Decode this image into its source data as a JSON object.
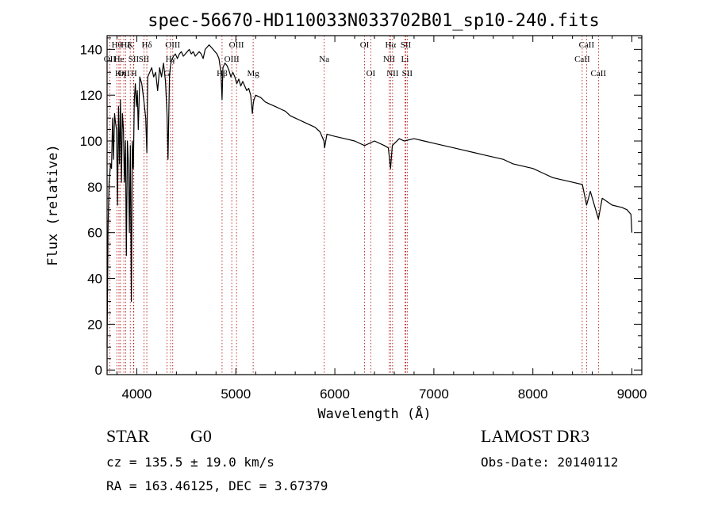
{
  "chart_data": {
    "type": "line",
    "title": "spec-56670-HD110033N033702B01_sp10-240.fits",
    "xlabel": "Wavelength (Å)",
    "ylabel": "Flux (relative)",
    "xlim": [
      3700,
      9100
    ],
    "ylim": [
      -2,
      146
    ],
    "x_ticks": [
      4000,
      5000,
      6000,
      7000,
      8000,
      9000
    ],
    "y_ticks": [
      0,
      20,
      40,
      60,
      80,
      100,
      120,
      140
    ],
    "series": [
      {
        "name": "spectrum",
        "x": [
          3700,
          3710,
          3720,
          3735,
          3745,
          3755,
          3765,
          3775,
          3785,
          3795,
          3805,
          3815,
          3825,
          3835,
          3845,
          3855,
          3865,
          3875,
          3885,
          3895,
          3905,
          3915,
          3925,
          3935,
          3945,
          3955,
          3965,
          3975,
          3985,
          3995,
          4005,
          4015,
          4030,
          4050,
          4070,
          4090,
          4101,
          4110,
          4130,
          4150,
          4170,
          4190,
          4210,
          4230,
          4250,
          4270,
          4290,
          4305,
          4315,
          4330,
          4340,
          4350,
          4370,
          4390,
          4410,
          4430,
          4450,
          4470,
          4490,
          4510,
          4530,
          4550,
          4570,
          4590,
          4610,
          4630,
          4650,
          4670,
          4690,
          4710,
          4730,
          4750,
          4770,
          4790,
          4810,
          4830,
          4850,
          4861,
          4870,
          4890,
          4910,
          4930,
          4950,
          4970,
          4990,
          5010,
          5030,
          5050,
          5070,
          5090,
          5110,
          5130,
          5150,
          5167,
          5175,
          5183,
          5200,
          5250,
          5300,
          5350,
          5400,
          5450,
          5500,
          5550,
          5600,
          5650,
          5700,
          5750,
          5800,
          5850,
          5890,
          5896,
          5920,
          6000,
          6100,
          6200,
          6300,
          6400,
          6500,
          6540,
          6563,
          6580,
          6650,
          6700,
          6800,
          6900,
          7000,
          7100,
          7200,
          7300,
          7400,
          7500,
          7600,
          7700,
          7800,
          7900,
          8000,
          8100,
          8200,
          8300,
          8400,
          8500,
          8542,
          8580,
          8662,
          8700,
          8800,
          8900,
          8950,
          8990,
          9000
        ],
        "y": [
          10,
          62,
          82,
          90,
          88,
          110,
          92,
          112,
          108,
          105,
          72,
          115,
          90,
          118,
          82,
          112,
          105,
          82,
          100,
          50,
          100,
          90,
          60,
          98,
          30,
          100,
          88,
          118,
          125,
          115,
          122,
          105,
          128,
          125,
          118,
          110,
          95,
          128,
          130,
          132,
          128,
          130,
          122,
          132,
          128,
          134,
          126,
          112,
          92,
          128,
          133,
          135,
          137,
          138,
          136,
          138,
          139,
          137,
          138,
          139,
          140,
          138,
          139,
          137,
          138,
          139,
          138,
          136,
          140,
          141,
          142,
          141,
          140,
          139,
          138,
          136,
          130,
          118,
          132,
          134,
          133,
          131,
          128,
          130,
          128,
          125,
          127,
          124,
          126,
          124,
          122,
          123,
          120,
          112,
          116,
          118,
          120,
          119,
          117,
          116,
          115,
          114,
          113,
          111,
          110,
          109,
          108,
          107,
          106,
          104,
          100,
          97,
          103,
          102,
          101,
          100,
          98,
          100,
          98,
          97,
          88,
          98,
          101,
          100,
          101,
          100,
          99,
          98,
          97,
          96,
          95,
          94,
          93,
          92,
          90,
          89,
          88,
          86,
          84,
          83,
          82,
          81,
          72,
          78,
          66,
          75,
          72,
          71,
          70,
          68,
          60
        ]
      }
    ],
    "lines": [
      {
        "name": "OII",
        "wavelength": 3727,
        "row": 1
      },
      {
        "name": "Hθ",
        "wavelength": 3798,
        "row": 0
      },
      {
        "name": "He",
        "wavelength": 3820,
        "row": 1
      },
      {
        "name": "Hη",
        "wavelength": 3835,
        "row": 2
      },
      {
        "name": "OII",
        "wavelength": 3869,
        "row": 2
      },
      {
        "name": "Hζ",
        "wavelength": 3889,
        "row": 0
      },
      {
        "name": "K",
        "wavelength": 3934,
        "row": 0
      },
      {
        "name": "SII",
        "wavelength": 3968,
        "row": 1
      },
      {
        "name": "H",
        "wavelength": 3970,
        "row": 2
      },
      {
        "name": "Hδ",
        "wavelength": 4101,
        "row": 0
      },
      {
        "name": "SII",
        "wavelength": 4072,
        "row": 1
      },
      {
        "name": "G",
        "wavelength": 4305,
        "row": 2
      },
      {
        "name": "Hγ",
        "wavelength": 4341,
        "row": 1
      },
      {
        "name": "OIII",
        "wavelength": 4363,
        "row": 0
      },
      {
        "name": "Hβ",
        "wavelength": 4861,
        "row": 2
      },
      {
        "name": "OIII",
        "wavelength": 4959,
        "row": 1
      },
      {
        "name": "OIII",
        "wavelength": 5007,
        "row": 0
      },
      {
        "name": "Mg",
        "wavelength": 5175,
        "row": 2
      },
      {
        "name": "Na",
        "wavelength": 5893,
        "row": 1
      },
      {
        "name": "OI",
        "wavelength": 6300,
        "row": 0
      },
      {
        "name": "OI",
        "wavelength": 6363,
        "row": 2
      },
      {
        "name": "NII",
        "wavelength": 6548,
        "row": 1
      },
      {
        "name": "Hα",
        "wavelength": 6563,
        "row": 0
      },
      {
        "name": "NII",
        "wavelength": 6583,
        "row": 2
      },
      {
        "name": "Li",
        "wavelength": 6708,
        "row": 1
      },
      {
        "name": "SII",
        "wavelength": 6716,
        "row": 0
      },
      {
        "name": "SII",
        "wavelength": 6731,
        "row": 2
      },
      {
        "name": "CaII",
        "wavelength": 8498,
        "row": 1
      },
      {
        "name": "CaII",
        "wavelength": 8542,
        "row": 0
      },
      {
        "name": "CaII",
        "wavelength": 8662,
        "row": 2
      }
    ]
  },
  "info": {
    "object_type": "STAR",
    "subclass": "G0",
    "survey": "LAMOST DR3",
    "redshift": "cz = 135.5 ± 19.0 km/s",
    "obs_date": "Obs-Date: 20140112",
    "coords": "RA = 163.46125, DEC =   3.67379"
  }
}
